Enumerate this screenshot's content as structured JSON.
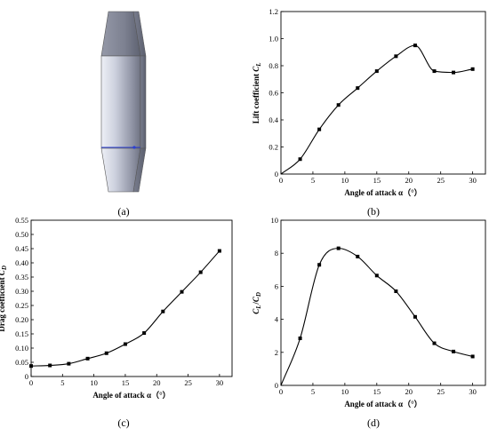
{
  "panel_labels": [
    "(a)",
    "(b)",
    "(c)",
    "(d)"
  ],
  "chart_data": [
    {
      "type": "line",
      "panel": "(b)",
      "xlabel": "Angle of attack α（°）",
      "ylabel": "Lift coefficient C_L",
      "xlim": [
        0,
        32
      ],
      "ylim": [
        0,
        1.2
      ],
      "xticks": [
        0,
        5,
        10,
        15,
        20,
        25,
        30
      ],
      "yticks": [
        0,
        0.2,
        0.4,
        0.6,
        0.8,
        1.0,
        1.2
      ],
      "ytick_labels": [
        "0",
        "0.2",
        "0.4",
        "0.6",
        "0.8",
        "1.0",
        "1.2"
      ],
      "series": [
        {
          "x": [
            0,
            3,
            6,
            9,
            12,
            15,
            18,
            21,
            24,
            27,
            30
          ],
          "y": [
            0,
            0.11,
            0.33,
            0.51,
            0.635,
            0.76,
            0.87,
            0.95,
            0.76,
            0.75,
            0.775
          ]
        }
      ]
    },
    {
      "type": "line",
      "panel": "(c)",
      "xlabel": "Angle of attack α（°）",
      "ylabel": "Drag coefficient C_D",
      "xlim": [
        0,
        32
      ],
      "ylim": [
        0,
        0.55
      ],
      "xticks": [
        0,
        5,
        10,
        15,
        20,
        25,
        30
      ],
      "yticks": [
        0,
        0.05,
        0.1,
        0.15,
        0.2,
        0.25,
        0.3,
        0.35,
        0.4,
        0.45,
        0.5,
        0.55
      ],
      "ytick_labels": [
        "0",
        "0.05",
        "0.10",
        "0.15",
        "0.20",
        "0.25",
        "0.30",
        "0.35",
        "0.40",
        "0.45",
        "0.50",
        "0.55"
      ],
      "series": [
        {
          "x": [
            0,
            3,
            6,
            9,
            12,
            15,
            18,
            21,
            24,
            27,
            30
          ],
          "y": [
            0.037,
            0.039,
            0.045,
            0.063,
            0.082,
            0.114,
            0.153,
            0.229,
            0.298,
            0.367,
            0.442
          ]
        }
      ]
    },
    {
      "type": "line",
      "panel": "(d)",
      "xlabel": "Angle of attack α（°）",
      "ylabel": "C_L/C_D",
      "xlim": [
        0,
        32
      ],
      "ylim": [
        0,
        10
      ],
      "xticks": [
        0,
        5,
        10,
        15,
        20,
        25,
        30
      ],
      "yticks": [
        0,
        2,
        4,
        6,
        8,
        10
      ],
      "ytick_labels": [
        "0",
        "2",
        "4",
        "6",
        "8",
        "10"
      ],
      "series": [
        {
          "x": [
            0,
            3,
            6,
            9,
            12,
            15,
            18,
            21,
            24,
            27,
            30
          ],
          "y": [
            0,
            2.85,
            7.3,
            8.3,
            7.8,
            6.65,
            5.7,
            4.15,
            2.55,
            2.05,
            1.75
          ]
        }
      ]
    }
  ]
}
